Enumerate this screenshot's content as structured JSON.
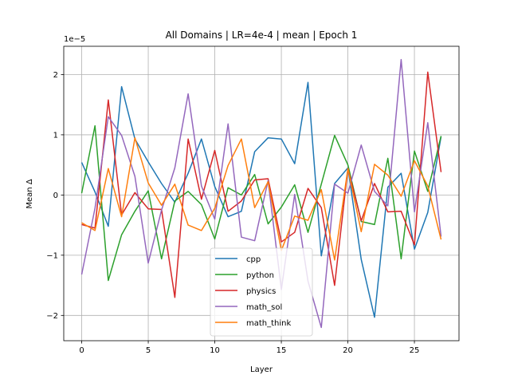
{
  "chart_data": {
    "type": "line",
    "title": "All Domains | LR=4e-4 | mean | Epoch 1",
    "xlabel": "Layer",
    "ylabel": "Mean Δ",
    "offset_text": "1e−5",
    "x": [
      0,
      1,
      2,
      3,
      4,
      5,
      6,
      7,
      8,
      9,
      10,
      11,
      12,
      13,
      14,
      15,
      16,
      17,
      18,
      19,
      20,
      21,
      22,
      23,
      24,
      25,
      26,
      27
    ],
    "xlim": [
      -1.35,
      28.35
    ],
    "ylim": [
      -2.42,
      2.47
    ],
    "xticks": [
      0,
      5,
      10,
      15,
      20,
      25
    ],
    "yticks": [
      -2,
      -1,
      0,
      1,
      2
    ],
    "ytick_labels": [
      "−2",
      "−1",
      "0",
      "1",
      "2"
    ],
    "grid": true,
    "legend_position": "lower-center",
    "series": [
      {
        "name": "cpp",
        "color": "#1f77b4",
        "values": [
          0.54,
          0.05,
          -0.52,
          1.8,
          0.93,
          0.55,
          0.19,
          -0.12,
          0.36,
          0.93,
          0.14,
          -0.36,
          -0.27,
          0.72,
          0.95,
          0.93,
          0.52,
          1.87,
          -1.01,
          0.19,
          0.45,
          -1.07,
          -2.03,
          0.13,
          0.36,
          -0.9,
          -0.29,
          0.97
        ]
      },
      {
        "name": "python",
        "color": "#2ca02c",
        "values": [
          0.03,
          1.15,
          -1.42,
          -0.66,
          -0.27,
          0.07,
          -1.06,
          -0.1,
          0.06,
          -0.16,
          -0.73,
          0.12,
          0.0,
          0.34,
          -0.48,
          -0.2,
          0.17,
          -0.62,
          0.18,
          0.99,
          0.5,
          -0.44,
          -0.49,
          0.61,
          -1.06,
          0.73,
          0.06,
          0.98
        ]
      },
      {
        "name": "physics",
        "color": "#d62728",
        "values": [
          -0.49,
          -0.55,
          1.58,
          -0.33,
          0.04,
          -0.23,
          -0.24,
          -1.7,
          0.93,
          -0.07,
          0.74,
          -0.27,
          -0.1,
          0.25,
          0.27,
          -0.78,
          -0.62,
          0.11,
          -0.21,
          -1.5,
          0.44,
          -0.43,
          0.19,
          -0.28,
          -0.27,
          -0.83,
          2.04,
          0.38
        ]
      },
      {
        "name": "math_sol",
        "color": "#9467bd",
        "values": [
          -1.32,
          -0.22,
          1.3,
          0.99,
          0.31,
          -1.13,
          -0.25,
          0.45,
          1.68,
          0.15,
          -0.4,
          1.18,
          -0.7,
          -0.76,
          0.24,
          -1.57,
          0.01,
          -1.43,
          -2.2,
          0.18,
          0.03,
          0.83,
          0.06,
          -0.18,
          2.25,
          -0.28,
          1.2,
          -0.69
        ]
      },
      {
        "name": "math_think",
        "color": "#ff7f0e",
        "values": [
          -0.46,
          -0.59,
          0.44,
          -0.36,
          0.95,
          0.2,
          -0.17,
          0.18,
          -0.5,
          -0.59,
          -0.22,
          0.49,
          0.93,
          -0.21,
          0.22,
          -0.92,
          -0.35,
          -0.42,
          0.09,
          -1.08,
          0.44,
          -0.61,
          0.51,
          0.33,
          -0.02,
          0.57,
          0.15,
          -0.74
        ]
      }
    ]
  }
}
